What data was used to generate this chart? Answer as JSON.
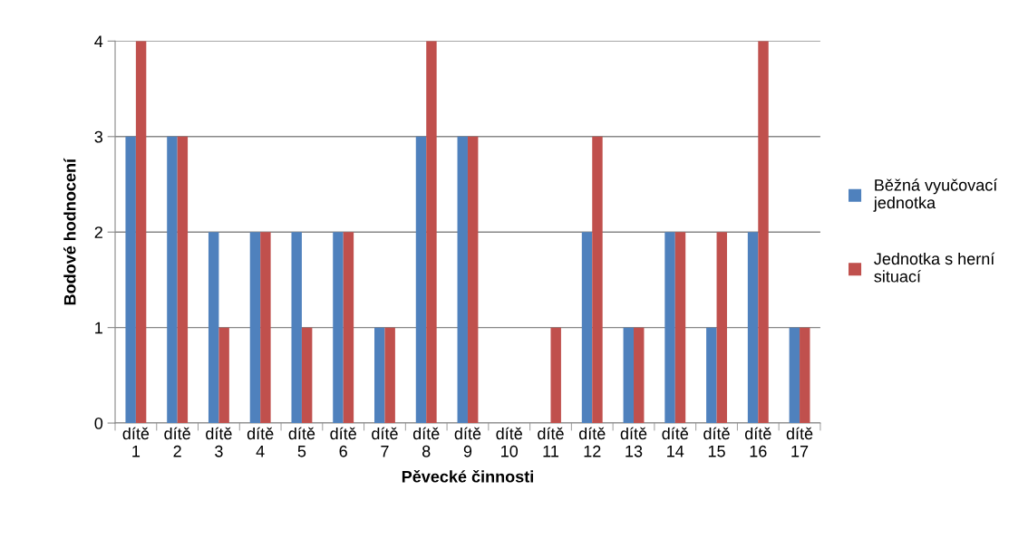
{
  "chart_data": {
    "type": "bar",
    "xlabel": "Pěvecké činnosti",
    "ylabel": "Bodové hodnocení",
    "categories": [
      "dítě\n1",
      "dítě\n2",
      "dítě\n3",
      "dítě\n4",
      "dítě\n5",
      "dítě\n6",
      "dítě\n7",
      "dítě\n8",
      "dítě\n9",
      "dítě\n10",
      "dítě\n11",
      "dítě\n12",
      "dítě\n13",
      "dítě\n14",
      "dítě\n15",
      "dítě\n16",
      "dítě\n17"
    ],
    "series": [
      {
        "name": "Běžná vyučovací\njednotka",
        "color": "#4f81bd",
        "values": [
          3,
          3,
          2,
          2,
          2,
          2,
          1,
          3,
          3,
          0,
          0,
          2,
          1,
          2,
          1,
          2,
          1
        ]
      },
      {
        "name": "Jednotka s herní\nsituací",
        "color": "#c0504d",
        "values": [
          4,
          3,
          1,
          2,
          1,
          2,
          1,
          4,
          3,
          0,
          1,
          3,
          1,
          2,
          2,
          4,
          1
        ]
      }
    ],
    "ylim": [
      0,
      4
    ],
    "yticks": [
      0,
      1,
      2,
      3,
      4
    ],
    "grid": "y",
    "legend": "right"
  }
}
